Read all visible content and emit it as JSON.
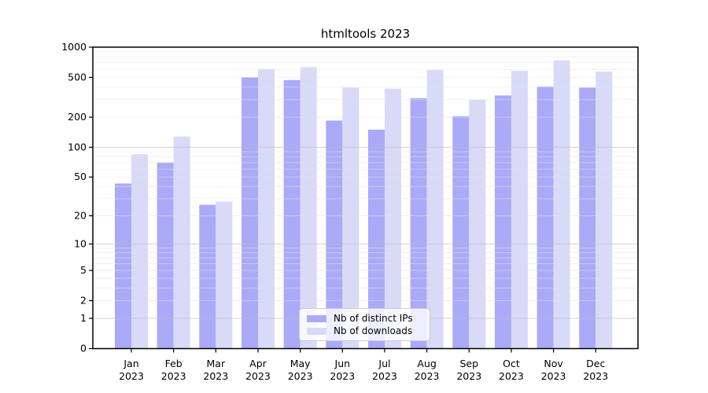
{
  "chart_data": {
    "type": "bar",
    "title": "htmltools 2023",
    "categories": [
      "Jan",
      "Feb",
      "Mar",
      "Apr",
      "May",
      "Jun",
      "Jul",
      "Aug",
      "Sep",
      "Oct",
      "Nov",
      "Dec"
    ],
    "category_year": "2023",
    "series": [
      {
        "name": "Nb of distinct IPs",
        "color": "#aaaaf8",
        "values": [
          43,
          70,
          26,
          500,
          470,
          185,
          150,
          310,
          205,
          330,
          405,
          395
        ]
      },
      {
        "name": "Nb of downloads",
        "color": "#d8daf8",
        "values": [
          85,
          128,
          28,
          605,
          630,
          395,
          385,
          590,
          300,
          580,
          740,
          570
        ]
      }
    ],
    "yscale": "log1p",
    "ylim": [
      0,
      1000
    ],
    "yticks": [
      0,
      1,
      2,
      5,
      10,
      20,
      50,
      100,
      200,
      500,
      1000
    ],
    "grid": true,
    "legend_position": "lower center",
    "colors": {
      "axis": "#000000",
      "major_grid": "#bdbdbd",
      "minor_grid": "#e3e3e3",
      "text": "#000000",
      "legend_border": "#cccccc"
    }
  }
}
